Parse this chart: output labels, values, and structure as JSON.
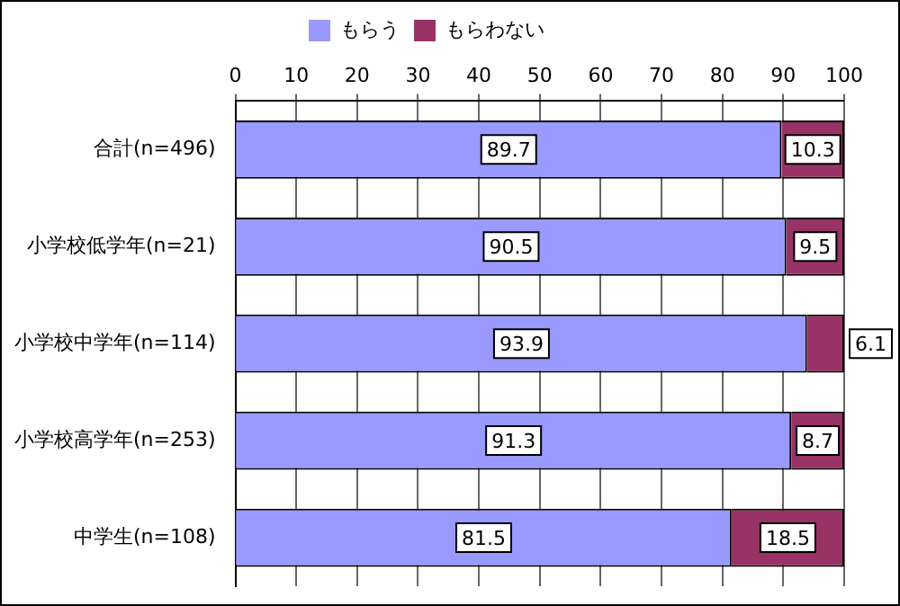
{
  "chart_data": {
    "type": "bar",
    "orientation": "horizontal",
    "stacked": true,
    "categories": [
      "合計(n=496)",
      "小学校低学年(n=21)",
      "小学校中学年(n=114)",
      "小学校高学年(n=253)",
      "中学生(n=108)"
    ],
    "series": [
      {
        "name": "もらう",
        "color": "#9999ff",
        "values": [
          89.7,
          90.5,
          93.9,
          91.3,
          81.5
        ]
      },
      {
        "name": "もらわない",
        "color": "#993366",
        "values": [
          10.3,
          9.5,
          6.1,
          8.7,
          18.5
        ]
      }
    ],
    "xlim": [
      0,
      100
    ],
    "xticks": [
      0,
      10,
      20,
      30,
      40,
      50,
      60,
      70,
      80,
      90,
      100
    ],
    "grid": "x",
    "legend": "top",
    "data_labels": true
  }
}
